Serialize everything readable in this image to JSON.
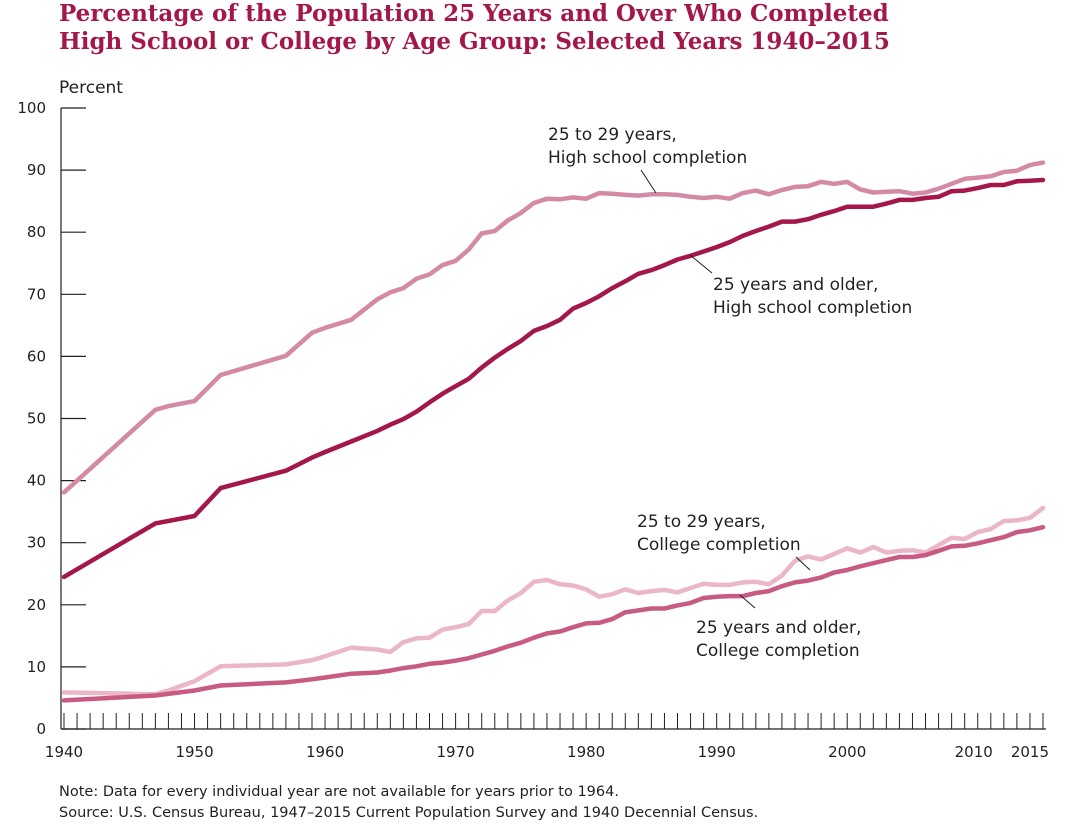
{
  "title_line1": "Percentage of the Population 25 Years and Over Who Completed",
  "title_line2": "High School or College by Age Group: Selected Years 1940–2015",
  "note": "Note: Data for every individual year are not available for years prior to 1964.",
  "source": "Source: U.S. Census Bureau, 1947–2015 Current Population Survey and 1940 Decennial Census.",
  "colors": {
    "dark": "#a3174a",
    "medium": "#c75b82",
    "light": "#d48aa4",
    "lightest": "#eab6c8",
    "axis": "#231f20"
  },
  "chart_data": {
    "type": "line",
    "ylabel": "Percent",
    "ylim": [
      0,
      100
    ],
    "xlim": [
      1940,
      2015
    ],
    "y_ticks": [
      "0",
      "10",
      "20",
      "30",
      "40",
      "50",
      "60",
      "70",
      "80",
      "90",
      "100"
    ],
    "x_ticks": [
      "1940",
      "1950",
      "1960",
      "1970",
      "1980",
      "1990",
      "2000",
      "2010",
      "2015"
    ],
    "grid": false,
    "series": [
      {
        "id": "hs_2529",
        "label_lines": [
          "25 to 29 years,",
          "High school completion"
        ],
        "color": "#d48aa4",
        "points": [
          [
            1940,
            38.1
          ],
          [
            1947,
            51.4
          ],
          [
            1948,
            52.0
          ],
          [
            1950,
            52.8
          ],
          [
            1952,
            57.0
          ],
          [
            1957,
            60.1
          ],
          [
            1959,
            63.8
          ],
          [
            1960,
            64.6
          ],
          [
            1962,
            65.9
          ],
          [
            1964,
            69.2
          ],
          [
            1965,
            70.3
          ],
          [
            1966,
            71.0
          ],
          [
            1967,
            72.5
          ],
          [
            1968,
            73.2
          ],
          [
            1969,
            74.7
          ],
          [
            1970,
            75.4
          ],
          [
            1971,
            77.2
          ],
          [
            1972,
            79.8
          ],
          [
            1973,
            80.2
          ],
          [
            1974,
            81.9
          ],
          [
            1975,
            83.1
          ],
          [
            1976,
            84.7
          ],
          [
            1977,
            85.4
          ],
          [
            1978,
            85.3
          ],
          [
            1979,
            85.6
          ],
          [
            1980,
            85.4
          ],
          [
            1981,
            86.3
          ],
          [
            1982,
            86.2
          ],
          [
            1983,
            86.0
          ],
          [
            1984,
            85.9
          ],
          [
            1985,
            86.1
          ],
          [
            1986,
            86.1
          ],
          [
            1987,
            86.0
          ],
          [
            1988,
            85.7
          ],
          [
            1989,
            85.5
          ],
          [
            1990,
            85.7
          ],
          [
            1991,
            85.4
          ],
          [
            1992,
            86.3
          ],
          [
            1993,
            86.7
          ],
          [
            1994,
            86.1
          ],
          [
            1995,
            86.8
          ],
          [
            1996,
            87.3
          ],
          [
            1997,
            87.4
          ],
          [
            1998,
            88.1
          ],
          [
            1999,
            87.8
          ],
          [
            2000,
            88.1
          ],
          [
            2001,
            86.9
          ],
          [
            2002,
            86.4
          ],
          [
            2003,
            86.5
          ],
          [
            2004,
            86.6
          ],
          [
            2005,
            86.2
          ],
          [
            2006,
            86.4
          ],
          [
            2007,
            87.0
          ],
          [
            2008,
            87.8
          ],
          [
            2009,
            88.6
          ],
          [
            2010,
            88.8
          ],
          [
            2011,
            89.0
          ],
          [
            2012,
            89.7
          ],
          [
            2013,
            89.9
          ],
          [
            2014,
            90.8
          ],
          [
            2015,
            91.2
          ]
        ]
      },
      {
        "id": "hs_25plus",
        "label_lines": [
          "25 years and older,",
          "High school completion"
        ],
        "color": "#a3174a",
        "points": [
          [
            1940,
            24.5
          ],
          [
            1947,
            33.1
          ],
          [
            1950,
            34.3
          ],
          [
            1952,
            38.8
          ],
          [
            1957,
            41.6
          ],
          [
            1959,
            43.7
          ],
          [
            1960,
            44.6
          ],
          [
            1962,
            46.3
          ],
          [
            1964,
            48.0
          ],
          [
            1965,
            49.0
          ],
          [
            1966,
            49.9
          ],
          [
            1967,
            51.1
          ],
          [
            1968,
            52.6
          ],
          [
            1969,
            54.0
          ],
          [
            1970,
            55.2
          ],
          [
            1971,
            56.4
          ],
          [
            1972,
            58.2
          ],
          [
            1973,
            59.8
          ],
          [
            1974,
            61.2
          ],
          [
            1975,
            62.5
          ],
          [
            1976,
            64.1
          ],
          [
            1977,
            64.9
          ],
          [
            1978,
            65.9
          ],
          [
            1979,
            67.7
          ],
          [
            1980,
            68.6
          ],
          [
            1981,
            69.7
          ],
          [
            1982,
            71.0
          ],
          [
            1983,
            72.1
          ],
          [
            1984,
            73.3
          ],
          [
            1985,
            73.9
          ],
          [
            1986,
            74.7
          ],
          [
            1987,
            75.6
          ],
          [
            1988,
            76.2
          ],
          [
            1989,
            76.9
          ],
          [
            1990,
            77.6
          ],
          [
            1991,
            78.4
          ],
          [
            1992,
            79.4
          ],
          [
            1993,
            80.2
          ],
          [
            1994,
            80.9
          ],
          [
            1995,
            81.7
          ],
          [
            1996,
            81.7
          ],
          [
            1997,
            82.1
          ],
          [
            1998,
            82.8
          ],
          [
            1999,
            83.4
          ],
          [
            2000,
            84.1
          ],
          [
            2001,
            84.1
          ],
          [
            2002,
            84.1
          ],
          [
            2003,
            84.6
          ],
          [
            2004,
            85.2
          ],
          [
            2005,
            85.2
          ],
          [
            2006,
            85.5
          ],
          [
            2007,
            85.7
          ],
          [
            2008,
            86.6
          ],
          [
            2009,
            86.7
          ],
          [
            2010,
            87.1
          ],
          [
            2011,
            87.6
          ],
          [
            2012,
            87.6
          ],
          [
            2013,
            88.2
          ],
          [
            2014,
            88.3
          ],
          [
            2015,
            88.4
          ]
        ]
      },
      {
        "id": "col_2529",
        "label_lines": [
          "25 to 29 years,",
          "College completion"
        ],
        "color": "#eab6c8",
        "points": [
          [
            1940,
            5.9
          ],
          [
            1947,
            5.6
          ],
          [
            1948,
            6.2
          ],
          [
            1950,
            7.7
          ],
          [
            1952,
            10.1
          ],
          [
            1957,
            10.4
          ],
          [
            1959,
            11.1
          ],
          [
            1960,
            11.7
          ],
          [
            1962,
            13.1
          ],
          [
            1964,
            12.8
          ],
          [
            1965,
            12.4
          ],
          [
            1966,
            14.0
          ],
          [
            1967,
            14.6
          ],
          [
            1968,
            14.7
          ],
          [
            1969,
            16.0
          ],
          [
            1970,
            16.4
          ],
          [
            1971,
            16.9
          ],
          [
            1972,
            19.0
          ],
          [
            1973,
            19.0
          ],
          [
            1974,
            20.7
          ],
          [
            1975,
            21.9
          ],
          [
            1976,
            23.7
          ],
          [
            1977,
            24.0
          ],
          [
            1978,
            23.3
          ],
          [
            1979,
            23.1
          ],
          [
            1980,
            22.5
          ],
          [
            1981,
            21.3
          ],
          [
            1982,
            21.7
          ],
          [
            1983,
            22.5
          ],
          [
            1984,
            21.9
          ],
          [
            1985,
            22.2
          ],
          [
            1986,
            22.4
          ],
          [
            1987,
            22.0
          ],
          [
            1988,
            22.7
          ],
          [
            1989,
            23.4
          ],
          [
            1990,
            23.2
          ],
          [
            1991,
            23.2
          ],
          [
            1992,
            23.6
          ],
          [
            1993,
            23.7
          ],
          [
            1994,
            23.3
          ],
          [
            1995,
            24.7
          ],
          [
            1996,
            27.1
          ],
          [
            1997,
            27.8
          ],
          [
            1998,
            27.3
          ],
          [
            1999,
            28.2
          ],
          [
            2000,
            29.1
          ],
          [
            2001,
            28.4
          ],
          [
            2002,
            29.3
          ],
          [
            2003,
            28.4
          ],
          [
            2004,
            28.7
          ],
          [
            2005,
            28.8
          ],
          [
            2006,
            28.4
          ],
          [
            2007,
            29.6
          ],
          [
            2008,
            30.8
          ],
          [
            2009,
            30.6
          ],
          [
            2010,
            31.7
          ],
          [
            2011,
            32.2
          ],
          [
            2012,
            33.5
          ],
          [
            2013,
            33.6
          ],
          [
            2014,
            34.0
          ],
          [
            2015,
            35.6
          ]
        ]
      },
      {
        "id": "col_25plus",
        "label_lines": [
          "25 years and older,",
          "College completion"
        ],
        "color": "#c75b82",
        "points": [
          [
            1940,
            4.6
          ],
          [
            1947,
            5.4
          ],
          [
            1950,
            6.2
          ],
          [
            1952,
            7.0
          ],
          [
            1957,
            7.5
          ],
          [
            1959,
            8.0
          ],
          [
            1960,
            8.3
          ],
          [
            1962,
            8.9
          ],
          [
            1964,
            9.1
          ],
          [
            1965,
            9.4
          ],
          [
            1966,
            9.8
          ],
          [
            1967,
            10.1
          ],
          [
            1968,
            10.5
          ],
          [
            1969,
            10.7
          ],
          [
            1970,
            11.0
          ],
          [
            1971,
            11.4
          ],
          [
            1972,
            12.0
          ],
          [
            1973,
            12.6
          ],
          [
            1974,
            13.3
          ],
          [
            1975,
            13.9
          ],
          [
            1976,
            14.7
          ],
          [
            1977,
            15.4
          ],
          [
            1978,
            15.7
          ],
          [
            1979,
            16.4
          ],
          [
            1980,
            17.0
          ],
          [
            1981,
            17.1
          ],
          [
            1982,
            17.7
          ],
          [
            1983,
            18.8
          ],
          [
            1984,
            19.1
          ],
          [
            1985,
            19.4
          ],
          [
            1986,
            19.4
          ],
          [
            1987,
            19.9
          ],
          [
            1988,
            20.3
          ],
          [
            1989,
            21.1
          ],
          [
            1990,
            21.3
          ],
          [
            1991,
            21.4
          ],
          [
            1992,
            21.4
          ],
          [
            1993,
            21.9
          ],
          [
            1994,
            22.2
          ],
          [
            1995,
            23.0
          ],
          [
            1996,
            23.6
          ],
          [
            1997,
            23.9
          ],
          [
            1998,
            24.4
          ],
          [
            1999,
            25.2
          ],
          [
            2000,
            25.6
          ],
          [
            2001,
            26.2
          ],
          [
            2002,
            26.7
          ],
          [
            2003,
            27.2
          ],
          [
            2004,
            27.7
          ],
          [
            2005,
            27.7
          ],
          [
            2006,
            28.0
          ],
          [
            2007,
            28.7
          ],
          [
            2008,
            29.4
          ],
          [
            2009,
            29.5
          ],
          [
            2010,
            29.9
          ],
          [
            2011,
            30.4
          ],
          [
            2012,
            30.9
          ],
          [
            2013,
            31.7
          ],
          [
            2014,
            32.0
          ],
          [
            2015,
            32.5
          ]
        ]
      }
    ]
  }
}
